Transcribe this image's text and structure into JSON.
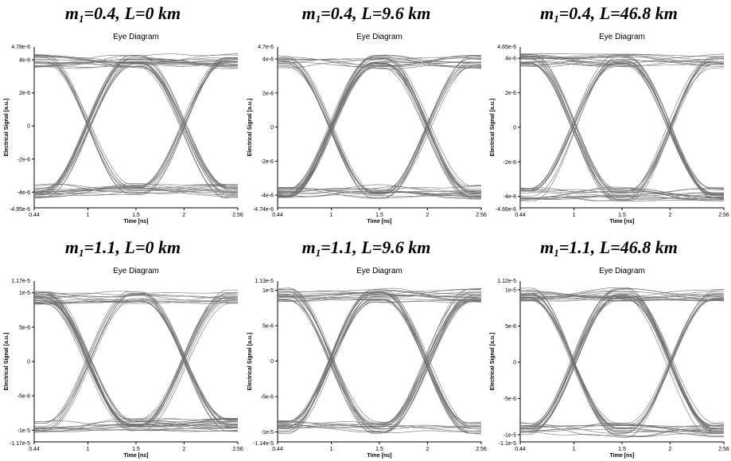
{
  "chart_data": [
    {
      "type": "line",
      "heading_m": "m",
      "heading_sub": "1",
      "heading_rest": "=0.4, L=0 km",
      "title": "Eye Diagram",
      "xlabel": "Time [ns]",
      "ylabel": "Electrical Signal [a.u.]",
      "xlim": [
        0.44,
        2.56
      ],
      "ylim": [
        -4.95e-06,
        4.78e-06
      ],
      "ymax_label": "4.78e-6",
      "ymin_label": "-4.95e-6",
      "level": 4e-06,
      "crossings": [
        1.0,
        2.0
      ],
      "x_ticks": [
        "0.44",
        "1",
        "1.5",
        "2",
        "2.56"
      ],
      "x_tick_values": [
        0.44,
        1,
        1.5,
        2,
        2.56
      ],
      "y_ticks": [
        "4e-6",
        "2e-6",
        "0",
        "-2e-6",
        "-4e-6"
      ],
      "y_tick_values": [
        4e-06,
        2e-06,
        0,
        -2e-06,
        -4e-06
      ],
      "trace_color": "#6e6e6e"
    },
    {
      "type": "line",
      "heading_m": "m",
      "heading_sub": "1",
      "heading_rest": "=0.4, L=9.6 km",
      "title": "Eye Diagram",
      "xlabel": "Time [ns]",
      "ylabel": "Electrical Signal [a.u.]",
      "xlim": [
        0.44,
        2.56
      ],
      "ylim": [
        -4.74e-06,
        4.7e-06
      ],
      "ymax_label": "4.7e-6",
      "ymin_label": "-4.74e-6",
      "level": 3.9e-06,
      "crossings": [
        1.0,
        2.0
      ],
      "x_ticks": [
        "0.44",
        "1",
        "1.5",
        "2",
        "2.56"
      ],
      "x_tick_values": [
        0.44,
        1,
        1.5,
        2,
        2.56
      ],
      "y_ticks": [
        "4e-6",
        "2e-6",
        "0",
        "-2e-6",
        "-4e-6"
      ],
      "y_tick_values": [
        4e-06,
        2e-06,
        0,
        -2e-06,
        -4e-06
      ],
      "trace_color": "#6e6e6e"
    },
    {
      "type": "line",
      "heading_m": "m",
      "heading_sub": "1",
      "heading_rest": "=0.4, L=46.8 km",
      "title": "Eye Diagram",
      "xlabel": "Time [ns]",
      "ylabel": "Electrical Signal [a.u.]",
      "xlim": [
        0.44,
        2.56
      ],
      "ylim": [
        -4.66e-06,
        4.65e-06
      ],
      "ymax_label": "4.65e-6",
      "ymin_label": "-4.66e-6",
      "level": 3.95e-06,
      "crossings": [
        1.0,
        2.0
      ],
      "x_ticks": [
        "0.44",
        "1",
        "1.5",
        "2",
        "2.56"
      ],
      "x_tick_values": [
        0.44,
        1,
        1.5,
        2,
        2.56
      ],
      "y_ticks": [
        "4e-6",
        "2e-6",
        "0",
        "-2e-6",
        "-4e-6"
      ],
      "y_tick_values": [
        4e-06,
        2e-06,
        0,
        -2e-06,
        -4e-06
      ],
      "trace_color": "#6e6e6e"
    },
    {
      "type": "line",
      "heading_m": "m",
      "heading_sub": "1",
      "heading_rest": "=1.1, L=0 km",
      "title": "Eye Diagram",
      "xlabel": "Time [ns]",
      "ylabel": "Electrical Signal [a.u.]",
      "xlim": [
        0.44,
        2.56
      ],
      "ylim": [
        -1.17e-05,
        1.17e-05
      ],
      "ymax_label": "1.17e-5",
      "ymin_label": "-1.17e-5",
      "level": 9.5e-06,
      "crossings": [
        1.0,
        2.0
      ],
      "x_ticks": [
        "0.44",
        "1",
        "1.5",
        "2",
        "2.56"
      ],
      "x_tick_values": [
        0.44,
        1,
        1.5,
        2,
        2.56
      ],
      "y_ticks": [
        "1e-5",
        "5e-6",
        "0",
        "-5e-6",
        "-1e-5"
      ],
      "y_tick_values": [
        1e-05,
        5e-06,
        0,
        -5e-06,
        -1e-05
      ],
      "trace_color": "#6e6e6e"
    },
    {
      "type": "line",
      "heading_m": "m",
      "heading_sub": "1",
      "heading_rest": "=1.1, L=9.6 km",
      "title": "Eye Diagram",
      "xlabel": "Time [ns]",
      "ylabel": "Electrical Signal [a.u.]",
      "xlim": [
        0.44,
        2.56
      ],
      "ylim": [
        -1.14e-05,
        1.13e-05
      ],
      "ymax_label": "1.13e-5",
      "ymin_label": "-1.14e-5",
      "level": 9.5e-06,
      "crossings": [
        1.0,
        2.0
      ],
      "x_ticks": [
        "0.44",
        "1",
        "1.5",
        "2",
        "2.56"
      ],
      "x_tick_values": [
        0.44,
        1,
        1.5,
        2,
        2.56
      ],
      "y_ticks": [
        "1e-5",
        "5e-6",
        "0",
        "-5e-6",
        "-1e-5"
      ],
      "y_tick_values": [
        1e-05,
        5e-06,
        0,
        -5e-06,
        -1e-05
      ],
      "trace_color": "#6e6e6e"
    },
    {
      "type": "line",
      "heading_m": "m",
      "heading_sub": "1",
      "heading_rest": "=1.1, L=46.8 km",
      "title": "Eye Diagram",
      "xlabel": "Time [ns]",
      "ylabel": "Electrical Signal [a.u.]",
      "xlim": [
        0.44,
        2.56
      ],
      "ylim": [
        -1.1e-05,
        1.12e-05
      ],
      "ymax_label": "1.12e-5",
      "ymin_label": "-1.1e-5",
      "level": 9.5e-06,
      "crossings": [
        1.0,
        2.0
      ],
      "x_ticks": [
        "0.44",
        "1",
        "1.5",
        "2",
        "2.56"
      ],
      "x_tick_values": [
        0.44,
        1,
        1.5,
        2,
        2.56
      ],
      "y_ticks": [
        "1e-5",
        "5e-6",
        "0",
        "-5e-6",
        "-1e-5"
      ],
      "y_tick_values": [
        1e-05,
        5e-06,
        0,
        -5e-06,
        -1e-05
      ],
      "trace_color": "#6e6e6e"
    }
  ]
}
